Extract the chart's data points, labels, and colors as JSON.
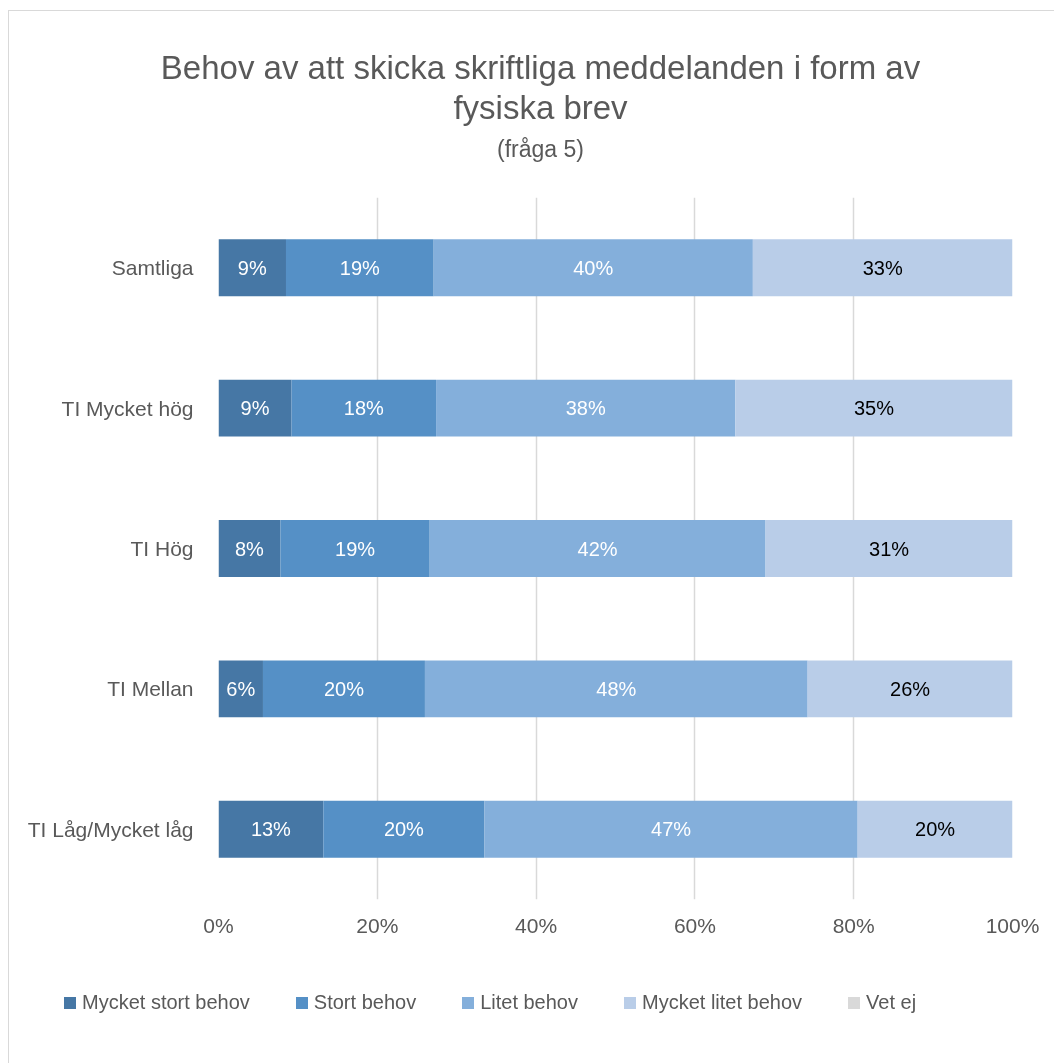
{
  "chart_data": {
    "type": "bar",
    "orientation": "horizontal",
    "stacked": true,
    "title": "Behov av att skicka skriftliga meddelanden i form av fysiska brev",
    "subtitle": "(fråga 5)",
    "categories": [
      "Samtliga",
      "TI Mycket hög",
      "TI Hög",
      "TI Mellan",
      "TI Låg/Mycket låg"
    ],
    "series": [
      {
        "name": "Mycket stort behov",
        "color": "#4677a5",
        "values": [
          8.5,
          9.2,
          7.8,
          5.6,
          13.2
        ],
        "value_labels": [
          "9%",
          "9%",
          "8%",
          "6%",
          "13%"
        ]
      },
      {
        "name": "Stort behov",
        "color": "#5590c6",
        "values": [
          18.6,
          18.2,
          18.8,
          20.4,
          20.3
        ],
        "value_labels": [
          "19%",
          "18%",
          "19%",
          "20%",
          "20%"
        ]
      },
      {
        "name": "Litet behov",
        "color": "#84afdb",
        "values": [
          40.2,
          37.7,
          42.3,
          48.2,
          47.0
        ],
        "value_labels": [
          "40%",
          "38%",
          "42%",
          "48%",
          "47%"
        ]
      },
      {
        "name": "Mycket litet behov",
        "color": "#b9cde8",
        "values": [
          32.7,
          34.9,
          31.1,
          25.8,
          19.5
        ],
        "value_labels": [
          "33%",
          "35%",
          "31%",
          "26%",
          "20%"
        ]
      },
      {
        "name": "Vet ej",
        "color": "#d9d9d9",
        "values": [
          null,
          null,
          null,
          null,
          null
        ]
      }
    ],
    "xlim": [
      0,
      100
    ],
    "xticks": [
      {
        "value": 0,
        "label": "0%"
      },
      {
        "value": 20,
        "label": "20%"
      },
      {
        "value": 40,
        "label": "40%"
      },
      {
        "value": 60,
        "label": "60%"
      },
      {
        "value": 80,
        "label": "80%"
      },
      {
        "value": 100,
        "label": "100%"
      }
    ],
    "grid": "x",
    "legend": "bottom"
  }
}
